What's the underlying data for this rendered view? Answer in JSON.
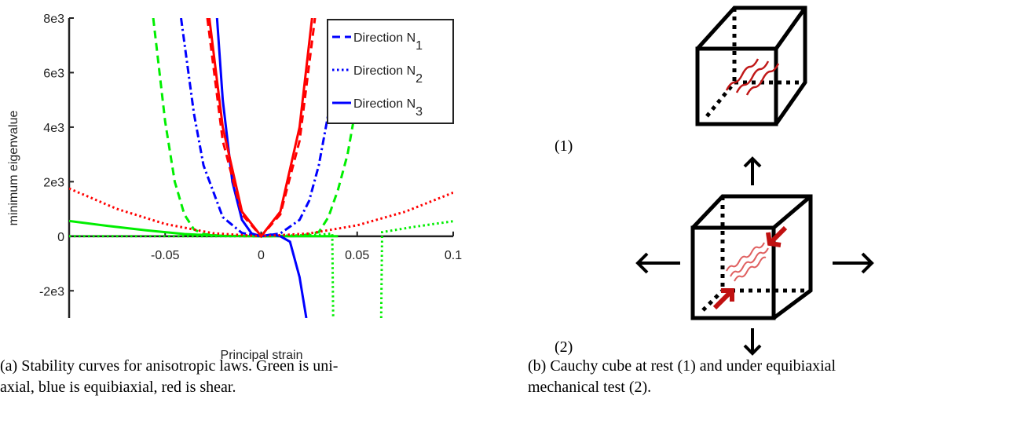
{
  "chart_data": {
    "type": "line",
    "xlabel": "Principal strain",
    "ylabel": "minimum eigenvalue",
    "xlim": [
      -0.1,
      0.1
    ],
    "ylim": [
      -3000,
      8000
    ],
    "xticks": [
      -0.05,
      0,
      0.05,
      0.1
    ],
    "yticks": [
      {
        "value": -2000,
        "label": "-2e3"
      },
      0,
      {
        "value": 2000,
        "label": "2e3"
      },
      {
        "value": 4000,
        "label": "4e3"
      },
      {
        "value": 6000,
        "label": "6e3"
      },
      {
        "value": 8000,
        "label": "8e3"
      }
    ],
    "legend_corner": "upper right",
    "legend": [
      {
        "label": "Direction N",
        "sub": "1",
        "color": "#0000ff",
        "dash": "dashed"
      },
      {
        "label": "Direction N",
        "sub": "2",
        "color": "#0000ff",
        "dash": "dotted"
      },
      {
        "label": "Direction N",
        "sub": "3",
        "color": "#0000ff",
        "dash": "solid"
      }
    ],
    "series": [
      {
        "color": "#00ee00",
        "dash": "dashed",
        "x": [
          -0.0562,
          -0.05,
          -0.045,
          -0.04,
          -0.035,
          -0.03,
          -0.02,
          0,
          0.02,
          0.03,
          0.035,
          0.04,
          0.045,
          0.05,
          0.053
        ],
        "values": [
          8000,
          4200,
          2000,
          800,
          250,
          80,
          10,
          0,
          10,
          150,
          700,
          1700,
          3000,
          5000,
          7000
        ]
      },
      {
        "color": "#00ee00",
        "dash": "dotted",
        "x": [
          -0.1,
          -0.05,
          0,
          0.03,
          0.037,
          0.0375,
          0.05,
          0.0625,
          0.063,
          0.08,
          0.1
        ],
        "values": [
          0,
          0,
          0,
          50,
          100,
          -3000,
          null,
          -3000,
          150,
          350,
          550
        ]
      },
      {
        "color": "#00ee00",
        "dash": "solid",
        "x": [
          -0.1,
          -0.08,
          -0.06,
          -0.04,
          -0.02,
          0,
          0.02,
          0.04
        ],
        "values": [
          560,
          380,
          220,
          80,
          15,
          0,
          0,
          0
        ]
      },
      {
        "color": "#0000ff",
        "dash": "dashdot",
        "x": [
          -0.0417,
          -0.035,
          -0.03,
          -0.02,
          -0.01,
          0,
          0.01,
          0.02,
          0.025,
          0.03,
          0.035,
          0.04
        ],
        "values": [
          8000,
          4500,
          2600,
          700,
          120,
          0,
          100,
          600,
          1300,
          2600,
          4500,
          8000
        ]
      },
      {
        "color": "#0000ff",
        "dash": "solid",
        "x": [
          -0.023,
          -0.02,
          -0.015,
          -0.01,
          -0.005,
          0,
          0.005,
          0.01,
          0.015,
          0.02,
          0.0235
        ],
        "values": [
          8000,
          5000,
          2000,
          600,
          100,
          0,
          60,
          0,
          -200,
          -1500,
          -3000
        ]
      },
      {
        "color": "#ff0000",
        "dash": "dotted",
        "x": [
          -0.1,
          -0.075,
          -0.05,
          -0.025,
          0,
          0.025,
          0.05,
          0.075,
          0.1
        ],
        "values": [
          1750,
          1000,
          450,
          110,
          0,
          100,
          400,
          900,
          1600
        ]
      },
      {
        "color": "#ff0000",
        "dash": "dashed",
        "x": [
          -0.028,
          -0.02,
          -0.01,
          0,
          0.01,
          0.02,
          0.028
        ],
        "values": [
          8000,
          3500,
          800,
          0,
          800,
          3500,
          8000
        ]
      },
      {
        "color": "#ff0000",
        "dash": "solid",
        "x": [
          -0.027,
          -0.02,
          -0.01,
          0,
          0.01,
          0.02,
          0.0265
        ],
        "values": [
          8000,
          4000,
          900,
          0,
          900,
          4000,
          8000
        ]
      }
    ]
  },
  "captions": {
    "a": [
      "(a) Stability curves for anisotropic laws. Green is uni-",
      "axial, blue is equibiaxial, red is shear."
    ],
    "b": [
      "(b) Cauchy cube at rest (1) and under equibiaxial",
      "mechanical test (2)."
    ]
  },
  "diagram": {
    "label_1": "(1)",
    "label_2": "(2)"
  }
}
